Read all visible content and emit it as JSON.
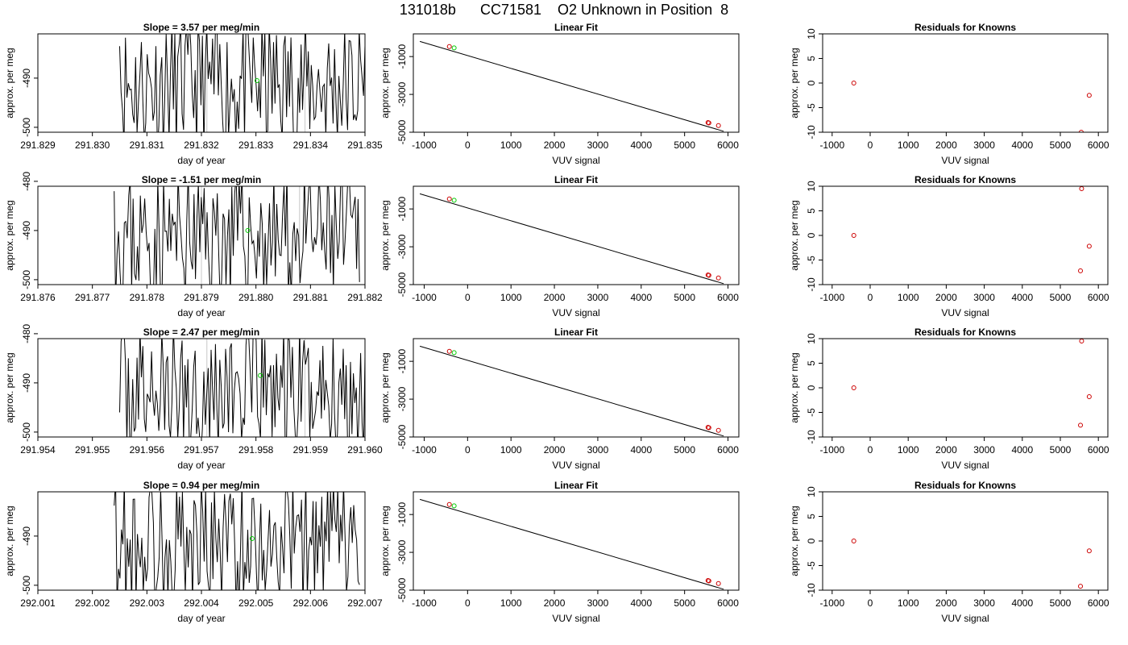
{
  "main_title": "131018b      CC71581    O2 Unknown in Position  8",
  "colors": {
    "line": "#000000",
    "known_point": "#cc0000",
    "unknown_point": "#00cc00",
    "reference_line": "#c8c8c8"
  },
  "chart_data": [
    {
      "type": "line",
      "title": "Slope =  3.57  per meg/min",
      "xlabel": "day of year",
      "ylabel": "approx. per meg",
      "xticks": [
        "291.829",
        "291.830",
        "291.831",
        "291.832",
        "291.833",
        "291.834",
        "291.835"
      ],
      "xlim": [
        291.829,
        291.835
      ],
      "ylim": [
        -501,
        -481
      ],
      "yticks": [
        -490,
        -500
      ],
      "reference_x": [
        291.8321,
        291.8339
      ],
      "series": [
        {
          "x_start": 291.8305,
          "x_end": 291.835,
          "seed": 11,
          "x": [
            291.8305,
            291.8316,
            291.8327,
            291.8338,
            291.835
          ],
          "y": [
            -483.5,
            -495.8,
            -486.2,
            -497.1,
            -483.4
          ]
        }
      ],
      "marker": {
        "x": 291.83302,
        "y": -490.5
      }
    },
    {
      "type": "scatter",
      "title": "Linear Fit",
      "xlabel": "VUV signal",
      "ylabel": "approx. per meg",
      "xticks": [
        "-1000",
        "0",
        "1000",
        "2000",
        "3000",
        "4000",
        "5000",
        "6000"
      ],
      "yticks": [
        "-1000",
        "-3000",
        "-5000"
      ],
      "xlim": [
        -1250,
        6250
      ],
      "ylim": [
        -5000,
        200
      ],
      "fit_line": {
        "x": [
          -1100,
          5900
        ],
        "y": [
          -200,
          -4950
        ]
      },
      "known_points": {
        "x": [
          -420,
          5540,
          5560,
          5780
        ],
        "y": [
          -470,
          -4490,
          -4510,
          -4650
        ]
      },
      "unknown_point": {
        "x": -310,
        "y": -540
      }
    },
    {
      "type": "scatter",
      "title": "Residuals for Knowns",
      "xlabel": "VUV signal",
      "ylabel": "",
      "xticks": [
        "-1000",
        "0",
        "1000",
        "2000",
        "3000",
        "4000",
        "5000",
        "6000"
      ],
      "yticks": [
        "10",
        "5",
        "0",
        "-5",
        "-10"
      ],
      "xlim": [
        -1250,
        6250
      ],
      "ylim": [
        -10,
        10
      ],
      "points": {
        "x": [
          -430,
          5550,
          5760
        ],
        "y": [
          0,
          -10,
          -2.5
        ]
      }
    },
    {
      "type": "line",
      "title": "Slope =  -1.51  per meg/min",
      "xlabel": "day of year",
      "ylabel": "approx. per meg",
      "xticks": [
        "291.876",
        "291.877",
        "291.878",
        "291.879",
        "291.880",
        "291.881",
        "291.882"
      ],
      "xlim": [
        291.876,
        291.882
      ],
      "ylim": [
        -501,
        -481
      ],
      "yticks": [
        -480,
        -490,
        -500
      ],
      "reference_x": [
        291.879,
        291.8808
      ],
      "series": [
        {
          "x_start": 291.8774,
          "x_end": 291.8819,
          "seed": 23,
          "x": [
            291.8774,
            291.8785,
            291.8796,
            291.8807,
            291.8819
          ],
          "y": [
            -482.0,
            -494.5,
            -487.3,
            -490.2,
            -500.5
          ]
        }
      ],
      "marker": {
        "x": 291.87985,
        "y": -490
      }
    },
    {
      "type": "scatter",
      "title": "Linear Fit",
      "xlabel": "VUV signal",
      "ylabel": "approx. per meg",
      "xticks": [
        "-1000",
        "0",
        "1000",
        "2000",
        "3000",
        "4000",
        "5000",
        "6000"
      ],
      "yticks": [
        "-1000",
        "-3000",
        "-5000"
      ],
      "xlim": [
        -1250,
        6250
      ],
      "ylim": [
        -5000,
        200
      ],
      "fit_line": {
        "x": [
          -1100,
          5900
        ],
        "y": [
          -200,
          -4950
        ]
      },
      "known_points": {
        "x": [
          -420,
          5540,
          5560,
          5780
        ],
        "y": [
          -470,
          -4490,
          -4510,
          -4650
        ]
      },
      "unknown_point": {
        "x": -310,
        "y": -540
      }
    },
    {
      "type": "scatter",
      "title": "Residuals for Knowns",
      "xlabel": "VUV signal",
      "ylabel": "",
      "xticks": [
        "-1000",
        "0",
        "1000",
        "2000",
        "3000",
        "4000",
        "5000",
        "6000"
      ],
      "yticks": [
        "10",
        "5",
        "0",
        "-5",
        "-10"
      ],
      "xlim": [
        -1250,
        6250
      ],
      "ylim": [
        -10,
        10
      ],
      "points": {
        "x": [
          -430,
          5560,
          5760,
          5530
        ],
        "y": [
          0,
          9.5,
          -2.2,
          -7.2
        ]
      }
    },
    {
      "type": "line",
      "title": "Slope =  2.47  per meg/min",
      "xlabel": "day of year",
      "ylabel": "approx. per meg",
      "xticks": [
        "291.954",
        "291.955",
        "291.956",
        "291.957",
        "291.958",
        "291.959",
        "291.960"
      ],
      "xlim": [
        291.954,
        291.96
      ],
      "ylim": [
        -501,
        -481
      ],
      "yticks": [
        -480,
        -490,
        -500
      ],
      "reference_x": [
        291.9571,
        291.9589
      ],
      "series": [
        {
          "x_start": 291.9555,
          "x_end": 291.96,
          "seed": 37,
          "x": [
            291.9555,
            291.9566,
            291.9578,
            291.9589,
            291.96
          ],
          "y": [
            -496.0,
            -488.5,
            -492.3,
            -485.1,
            -484.6
          ]
        }
      ],
      "marker": {
        "x": 291.95808,
        "y": -488.5
      }
    },
    {
      "type": "scatter",
      "title": "Linear Fit",
      "xlabel": "VUV signal",
      "ylabel": "approx. per meg",
      "xticks": [
        "-1000",
        "0",
        "1000",
        "2000",
        "3000",
        "4000",
        "5000",
        "6000"
      ],
      "yticks": [
        "-1000",
        "-3000",
        "-5000"
      ],
      "xlim": [
        -1250,
        6250
      ],
      "ylim": [
        -5000,
        200
      ],
      "fit_line": {
        "x": [
          -1100,
          5900
        ],
        "y": [
          -200,
          -4950
        ]
      },
      "known_points": {
        "x": [
          -420,
          5540,
          5560,
          5780
        ],
        "y": [
          -470,
          -4490,
          -4510,
          -4650
        ]
      },
      "unknown_point": {
        "x": -310,
        "y": -540
      }
    },
    {
      "type": "scatter",
      "title": "Residuals for Knowns",
      "xlabel": "VUV signal",
      "ylabel": "",
      "xticks": [
        "-1000",
        "0",
        "1000",
        "2000",
        "3000",
        "4000",
        "5000",
        "6000"
      ],
      "yticks": [
        "10",
        "5",
        "0",
        "-5",
        "-10"
      ],
      "xlim": [
        -1250,
        6250
      ],
      "ylim": [
        -10,
        10
      ],
      "points": {
        "x": [
          -430,
          5560,
          5760,
          5530
        ],
        "y": [
          0,
          9.5,
          -1.8,
          -7.6
        ]
      }
    },
    {
      "type": "line",
      "title": "Slope =  0.94  per meg/min",
      "xlabel": "day of year",
      "ylabel": "approx. per meg",
      "xticks": [
        "292.001",
        "292.002",
        "292.003",
        "292.004",
        "292.005",
        "292.006",
        "292.007"
      ],
      "xlim": [
        292.001,
        292.007
      ],
      "ylim": [
        -501,
        -481
      ],
      "yticks": [
        -490,
        -500
      ],
      "reference_x": [],
      "series": [
        {
          "x_start": 292.0024,
          "x_end": 292.0069,
          "seed": 53,
          "x": [
            292.0024,
            292.0035,
            292.0046,
            292.0058,
            292.0069
          ],
          "y": [
            -483.8,
            -496.4,
            -488.9,
            -486.7,
            -499.9
          ]
        }
      ],
      "marker": {
        "x": 292.00493,
        "y": -490.5
      }
    },
    {
      "type": "scatter",
      "title": "Linear Fit",
      "xlabel": "VUV signal",
      "ylabel": "approx. per meg",
      "xticks": [
        "-1000",
        "0",
        "1000",
        "2000",
        "3000",
        "4000",
        "5000",
        "6000"
      ],
      "yticks": [
        "-1000",
        "-3000",
        "-5000"
      ],
      "xlim": [
        -1250,
        6250
      ],
      "ylim": [
        -5000,
        200
      ],
      "fit_line": {
        "x": [
          -1100,
          5900
        ],
        "y": [
          -200,
          -4950
        ]
      },
      "known_points": {
        "x": [
          -420,
          5540,
          5560,
          5780
        ],
        "y": [
          -470,
          -4490,
          -4510,
          -4650
        ]
      },
      "unknown_point": {
        "x": -310,
        "y": -540
      }
    },
    {
      "type": "scatter",
      "title": "Residuals for Knowns",
      "xlabel": "VUV signal",
      "ylabel": "",
      "xticks": [
        "-1000",
        "0",
        "1000",
        "2000",
        "3000",
        "4000",
        "5000",
        "6000"
      ],
      "yticks": [
        "10",
        "5",
        "0",
        "-5",
        "-10"
      ],
      "xlim": [
        -1250,
        6250
      ],
      "ylim": [
        -10,
        10
      ],
      "points": {
        "x": [
          -430,
          5760,
          5530
        ],
        "y": [
          0,
          -2.0,
          -9.2
        ]
      }
    }
  ]
}
